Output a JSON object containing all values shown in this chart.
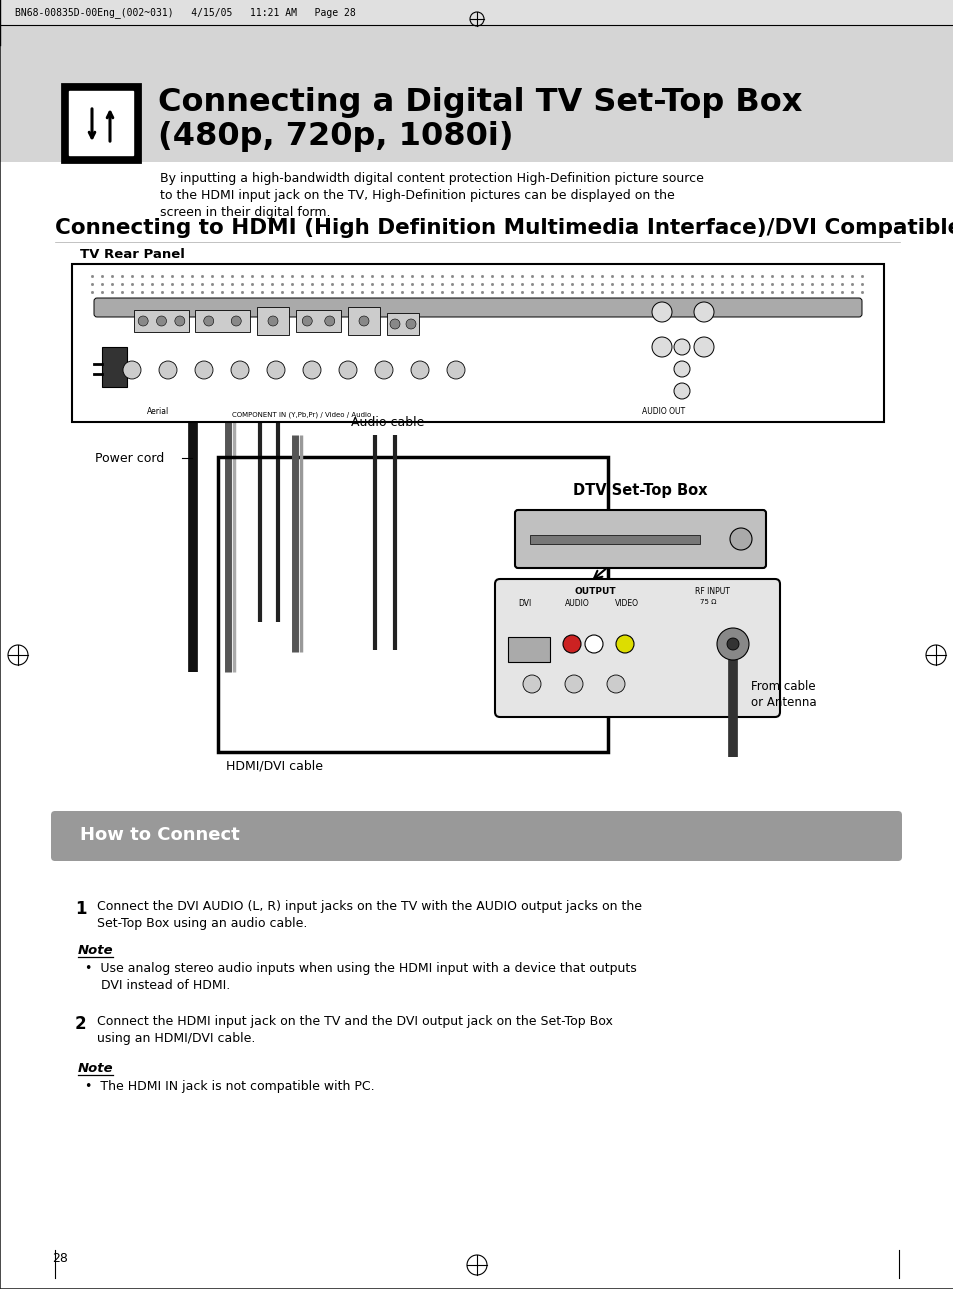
{
  "page_bg": "#f0f0f0",
  "content_bg": "#ffffff",
  "header_text": "BN68-00835D-00Eng_(002~031)   4/15/05   11:21 AM   Page 28",
  "title_line1": "Connecting a Digital TV Set-Top Box",
  "title_line2": "(480p, 720p, 1080i)",
  "subtitle_text": "By inputting a high-bandwidth digital content protection High-Definition picture source\nto the HDMI input jack on the TV, High-Definition pictures can be displayed on the\nscreen in their digital form.",
  "section_title": "Connecting to HDMI (High Definition Multimedia Interface)/DVI Compatible",
  "tv_rear_label": "TV Rear Panel",
  "power_cord_label": "Power cord",
  "dtv_label": "DTV Set-Top Box",
  "hdmi_cable_label": "HDMI/DVI cable",
  "audio_cable_label": "Audio cable",
  "from_cable_label": "From cable\nor Antenna",
  "how_to_connect_title": "How to Connect",
  "how_bg": "#999999",
  "step1_number": "1",
  "step1_text": "Connect the DVI AUDIO (L, R) input jacks on the TV with the AUDIO output jacks on the\nSet-Top Box using an audio cable.",
  "note1_title": "Note",
  "note1_bullet": "Use analog stereo audio inputs when using the HDMI input with a device that outputs\nDVI instead of HDMI.",
  "step2_number": "2",
  "step2_text": "Connect the HDMI input jack on the TV and the DVI output jack on the Set-Top Box\nusing an HDMI/DVI cable.",
  "note2_title": "Note",
  "note2_bullet": "The HDMI IN jack is not compatible with PC.",
  "page_number": "28"
}
